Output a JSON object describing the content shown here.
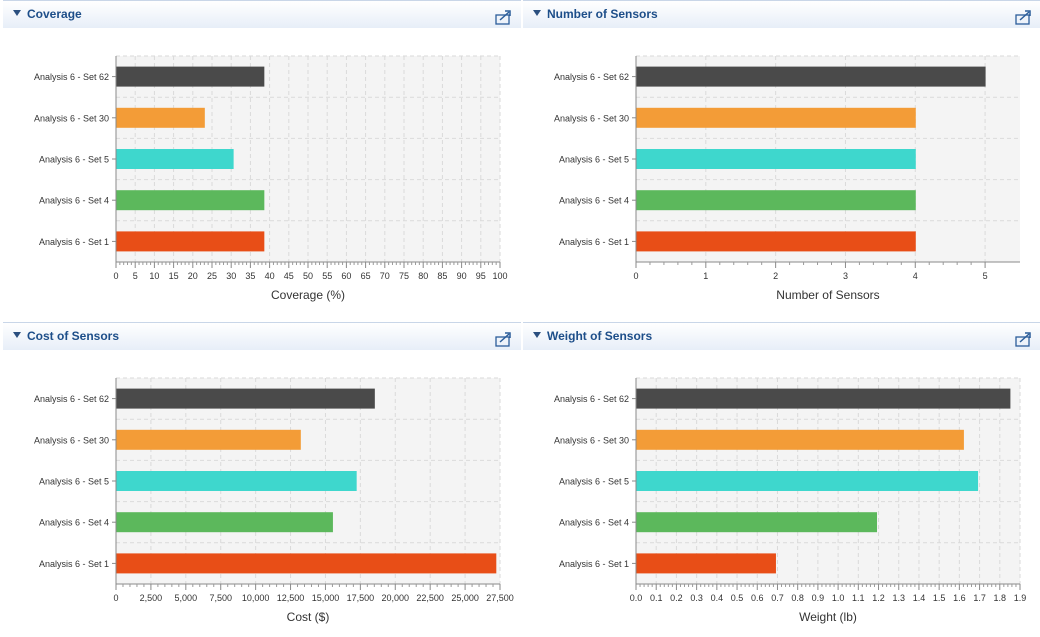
{
  "panels": [
    {
      "title": "Coverage"
    },
    {
      "title": "Number of Sensors"
    },
    {
      "title": "Cost of Sensors"
    },
    {
      "title": "Weight of Sensors"
    }
  ],
  "colors": {
    "set62": "#4a4a4a",
    "set30": "#f39c37",
    "set5": "#3ed7cd",
    "set4": "#5cb85c",
    "set1": "#e84e17"
  },
  "chart_data": [
    {
      "type": "bar",
      "orientation": "horizontal",
      "title": "Coverage",
      "categories": [
        "Analysis 6 - Set 62",
        "Analysis 6 - Set 30",
        "Analysis 6 - Set 5",
        "Analysis 6 - Set 4",
        "Analysis 6 - Set 1"
      ],
      "values": [
        38.5,
        23,
        30.5,
        38.5,
        38.5
      ],
      "xlabel": "Coverage (%)",
      "xlim": [
        0,
        100
      ],
      "ticks": [
        0,
        5,
        10,
        15,
        20,
        25,
        30,
        35,
        40,
        45,
        50,
        55,
        60,
        65,
        70,
        75,
        80,
        85,
        90,
        95,
        100
      ],
      "tick_labels": [
        "0",
        "5",
        "10",
        "15",
        "20",
        "25",
        "30",
        "35",
        "40",
        "45",
        "50",
        "55",
        "60",
        "65",
        "70",
        "75",
        "80",
        "85",
        "90",
        "95",
        "100"
      ],
      "grid": true
    },
    {
      "type": "bar",
      "orientation": "horizontal",
      "title": "Number of Sensors",
      "categories": [
        "Analysis 6 - Set 62",
        "Analysis 6 - Set 30",
        "Analysis 6 - Set 5",
        "Analysis 6 - Set 4",
        "Analysis 6 - Set 1"
      ],
      "values": [
        5,
        4,
        4,
        4,
        4
      ],
      "xlabel": "Number of Sensors",
      "xlim": [
        0,
        5.5
      ],
      "ticks": [
        0,
        1,
        2,
        3,
        4,
        5
      ],
      "tick_labels": [
        "0",
        "1",
        "2",
        "3",
        "4",
        "5"
      ],
      "grid": true
    },
    {
      "type": "bar",
      "orientation": "horizontal",
      "title": "Cost of Sensors",
      "categories": [
        "Analysis 6 - Set 62",
        "Analysis 6 - Set 30",
        "Analysis 6 - Set 5",
        "Analysis 6 - Set 4",
        "Analysis 6 - Set 1"
      ],
      "values": [
        18500,
        13200,
        17200,
        15500,
        27200
      ],
      "xlabel": "Cost ($)",
      "xlim": [
        0,
        27500
      ],
      "ticks": [
        0,
        2500,
        5000,
        7500,
        10000,
        12500,
        15000,
        17500,
        20000,
        22500,
        25000,
        27500
      ],
      "tick_labels": [
        "0",
        "2,500",
        "5,000",
        "7,500",
        "10,000",
        "12,500",
        "15,000",
        "17,500",
        "20,000",
        "22,500",
        "25,000",
        "27,500"
      ],
      "grid": true
    },
    {
      "type": "bar",
      "orientation": "horizontal",
      "title": "Weight of Sensors",
      "categories": [
        "Analysis 6 - Set 62",
        "Analysis 6 - Set 30",
        "Analysis 6 - Set 5",
        "Analysis 6 - Set 4",
        "Analysis 6 - Set 1"
      ],
      "values": [
        1.85,
        1.62,
        1.69,
        1.19,
        0.69
      ],
      "xlabel": "Weight (lb)",
      "xlim": [
        0,
        1.9
      ],
      "ticks": [
        0,
        0.1,
        0.2,
        0.3,
        0.4,
        0.5,
        0.6,
        0.7,
        0.8,
        0.9,
        1.0,
        1.1,
        1.2,
        1.3,
        1.4,
        1.5,
        1.6,
        1.7,
        1.8,
        1.9
      ],
      "tick_labels": [
        "0.0",
        "0.1",
        "0.2",
        "0.3",
        "0.4",
        "0.5",
        "0.6",
        "0.7",
        "0.8",
        "0.9",
        "1.0",
        "1.1",
        "1.2",
        "1.3",
        "1.4",
        "1.5",
        "1.6",
        "1.7",
        "1.8",
        "1.9"
      ],
      "grid": true
    }
  ]
}
